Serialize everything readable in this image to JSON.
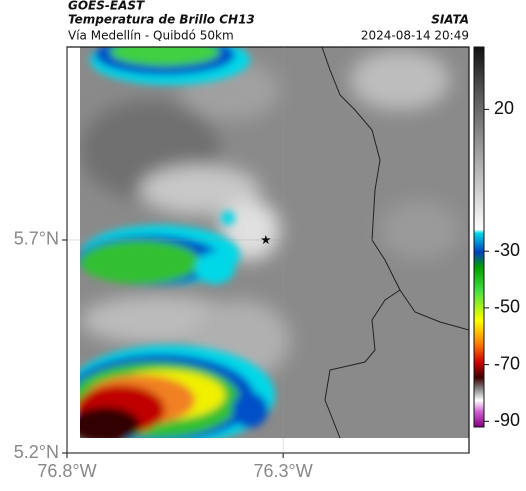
{
  "header": {
    "title": "GOES-EAST",
    "subtitle": "Temperatura de Brillo CH13",
    "source": "SIATA",
    "route": "Vía Medellín - Quibdó 50km",
    "timestamp": "2024-08-14 20:49"
  },
  "map": {
    "xlim": [
      -76.8,
      -75.87
    ],
    "ylim": [
      5.2,
      6.153
    ],
    "xticks": [
      {
        "value": -76.8,
        "label": "76.8°W"
      },
      {
        "value": -76.3,
        "label": "76.3°W"
      }
    ],
    "yticks": [
      {
        "value": 5.7,
        "label": "5.7°N"
      },
      {
        "value": 5.2,
        "label": "5.2°N"
      }
    ],
    "marker": [
      -76.34,
      5.7
    ]
  },
  "colorbar": {
    "lim": [
      42,
      -92
    ],
    "ticks": [
      20,
      -30,
      -50,
      -70,
      -90
    ]
  }
}
